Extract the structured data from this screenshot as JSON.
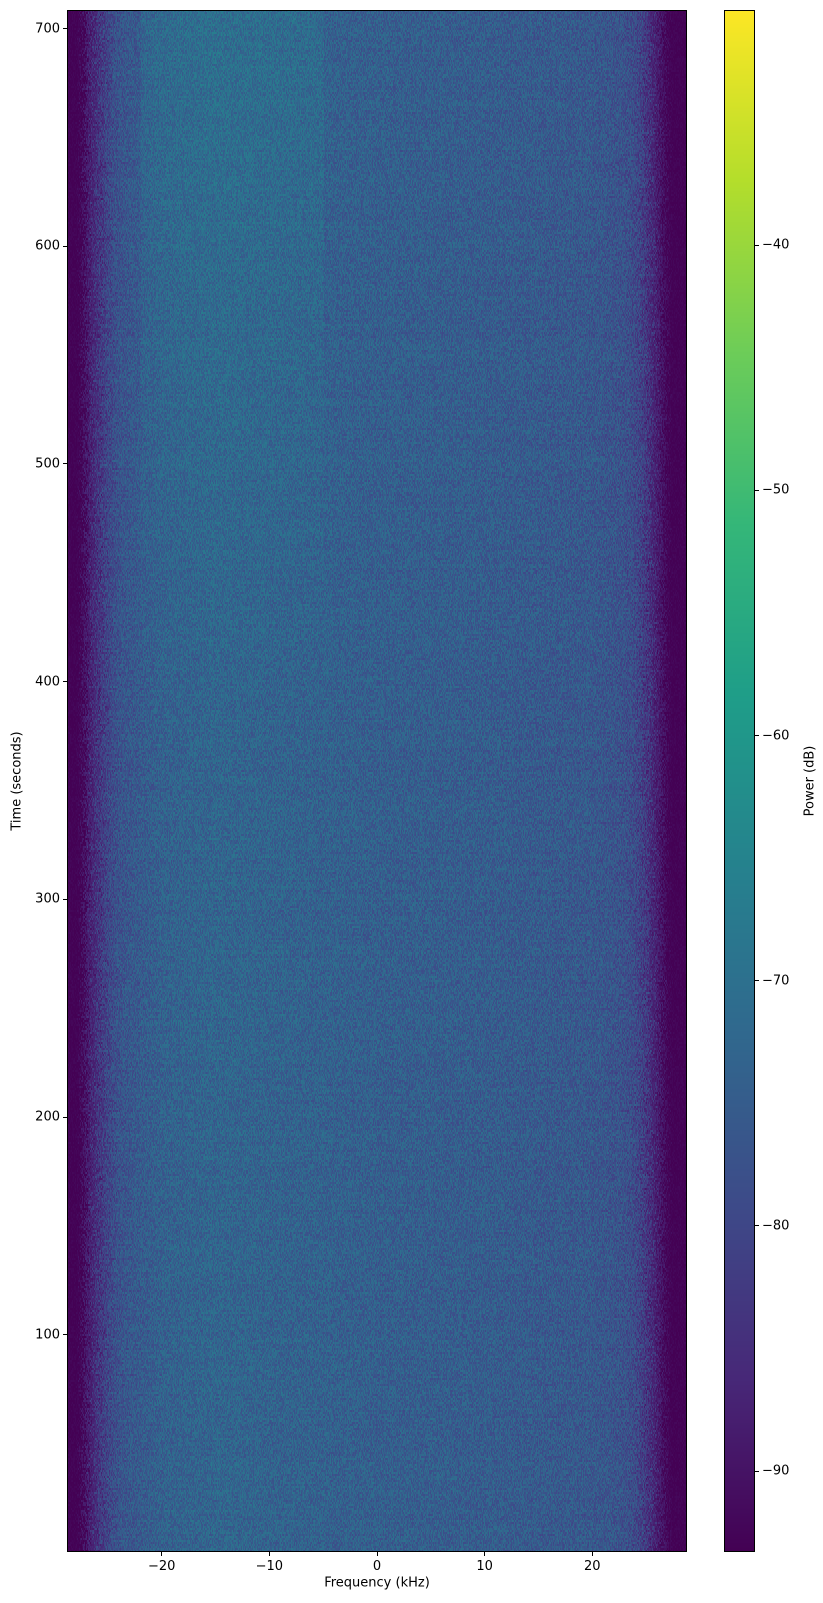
{
  "chart_data": {
    "type": "heatmap",
    "title": "",
    "xlabel": "Frequency (kHz)",
    "ylabel": "Time (seconds)",
    "xlim": [
      -28.8,
      28.8
    ],
    "ylim": [
      0.3,
      708.5
    ],
    "xticks": [
      -20,
      -10,
      0,
      10,
      20
    ],
    "xtick_labels": [
      "−20",
      "−10",
      "0",
      "10",
      "20"
    ],
    "yticks": [
      100,
      200,
      300,
      400,
      500,
      600,
      700
    ],
    "ytick_labels": [
      "100",
      "200",
      "300",
      "400",
      "500",
      "600",
      "700"
    ],
    "colormap": "viridis",
    "colorbar": {
      "label": "Power (dB)",
      "range": [
        -93.3,
        -30.4
      ],
      "ticks": [
        -90,
        -80,
        -70,
        -60,
        -50,
        -40
      ],
      "tick_labels": [
        "−90",
        "−80",
        "−70",
        "−60",
        "−50",
        "−40"
      ]
    },
    "mean_power_profile": {
      "frequency_khz": [
        -28.8,
        -27.5,
        -27,
        -26,
        -25,
        -24,
        -20,
        -15,
        -10,
        0,
        10,
        20,
        23,
        24,
        25,
        26,
        27,
        28.8
      ],
      "power_db": [
        -93,
        -93,
        -89,
        -84,
        -80,
        -77,
        -74,
        -73,
        -73.5,
        -74.5,
        -75,
        -76,
        -77.5,
        -79,
        -83,
        -88,
        -93,
        -93
      ]
    },
    "grid": false
  }
}
